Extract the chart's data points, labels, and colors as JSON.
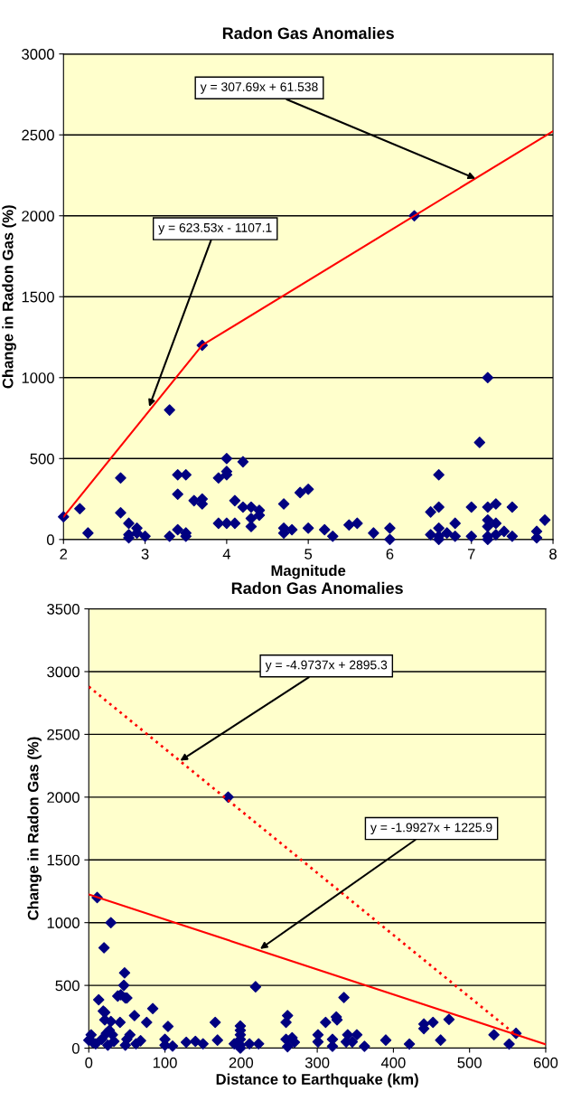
{
  "chart_data": [
    {
      "type": "scatter",
      "title": "Radon Gas Anomalies",
      "xlabel": "Magnitude",
      "ylabel": "Change in Radon Gas (%)",
      "xlim": [
        2,
        8
      ],
      "xticks": [
        2,
        3,
        4,
        5,
        6,
        7,
        8
      ],
      "ylim": [
        0,
        3000
      ],
      "yticks": [
        0,
        500,
        1000,
        1500,
        2000,
        2500,
        3000
      ],
      "grid": "y",
      "legend": false,
      "series": [
        {
          "color": "#000080",
          "marker": "diamond",
          "x": [
            2,
            2.2,
            2.3,
            2.7,
            2.7,
            2.8,
            2.8,
            2.8,
            2.9,
            2.9,
            3,
            3.3,
            3.3,
            3.4,
            3.4,
            3.4,
            3.5,
            3.5,
            3.5,
            3.6,
            3.7,
            3.7,
            3.7,
            3.9,
            3.9,
            4,
            4,
            4,
            4,
            4.1,
            4.1,
            4.2,
            4.2,
            4.3,
            4.3,
            4.3,
            4.4,
            4.4,
            4.7,
            4.7,
            4.7,
            4.8,
            4.9,
            5,
            5,
            5.2,
            5.3,
            5.5,
            5.6,
            5.8,
            6,
            6,
            6.3,
            6.5,
            6.5,
            6.6,
            6.6,
            6.6,
            6.6,
            6.6,
            6.7,
            6.8,
            6.8,
            7,
            7,
            7.1,
            7.2,
            7.2,
            7.2,
            7.2,
            7.2,
            7.2,
            7.3,
            7.3,
            7.3,
            7.4,
            7.5,
            7.5,
            7.8,
            7.8,
            7.9
          ],
          "values": [
            140,
            190,
            40,
            380,
            165,
            100,
            30,
            10,
            70,
            40,
            20,
            800,
            20,
            400,
            280,
            60,
            400,
            40,
            20,
            240,
            250,
            220,
            1200,
            380,
            100,
            500,
            420,
            400,
            100,
            240,
            100,
            480,
            200,
            200,
            130,
            80,
            180,
            150,
            220,
            70,
            40,
            60,
            290,
            310,
            70,
            60,
            20,
            90,
            100,
            40,
            70,
            0,
            2000,
            170,
            30,
            400,
            200,
            70,
            20,
            0,
            40,
            100,
            20,
            200,
            20,
            600,
            1000,
            200,
            120,
            80,
            20,
            0,
            220,
            100,
            30,
            50,
            200,
            20,
            50,
            10,
            120
          ]
        },
        {
          "type": "line",
          "color": "#ff0000",
          "line_style": "solid",
          "marker": "none",
          "x": [
            2,
            3.7,
            8
          ],
          "values": [
            140,
            1200,
            2523
          ]
        }
      ],
      "annotations": [
        {
          "text": "y = 307.69x + 61.538",
          "x": 7.05,
          "y": 2230
        },
        {
          "text": "y = 623.53x - 1107.1",
          "x": 3.05,
          "y": 820
        }
      ]
    },
    {
      "type": "scatter",
      "title": "Radon Gas Anomalies",
      "xlabel": "Distance to Earthquake (km)",
      "ylabel": "Change in Radon Gas (%)",
      "xlim": [
        0,
        600
      ],
      "xticks": [
        0,
        100,
        200,
        300,
        400,
        500,
        600
      ],
      "ylim": [
        0,
        3500
      ],
      "yticks": [
        0,
        500,
        1000,
        1500,
        2000,
        2500,
        3000,
        3500
      ],
      "grid": "y",
      "legend": false,
      "series": [
        {
          "color": "#000080",
          "marker": "diamond",
          "x": [
            183,
            11,
            29,
            20,
            47,
            46,
            42,
            38,
            48,
            50,
            13,
            19,
            21,
            21,
            29,
            41,
            60,
            76,
            84,
            104,
            166,
            169,
            199,
            199,
            199,
            199,
            199,
            199,
            219,
            261,
            259,
            259,
            261,
            267,
            0,
            3,
            5,
            9,
            17,
            23,
            27,
            31,
            33,
            25,
            50,
            54,
            48,
            68,
            62,
            100,
            100,
            110,
            128,
            140,
            150,
            191,
            211,
            223,
            270,
            335,
            311,
            325,
            326,
            301,
            301,
            320,
            320,
            340,
            338,
            346,
            352,
            362,
            390,
            421,
            440,
            440,
            452,
            473,
            462,
            532,
            552,
            561
          ],
          "values": [
            2000,
            1200,
            1000,
            800,
            600,
            500,
            425,
            415,
            400,
            400,
            385,
            295,
            285,
            225,
            213,
            205,
            260,
            205,
            315,
            173,
            205,
            64,
            177,
            142,
            106,
            71,
            24,
            0,
            489,
            260,
            205,
            71,
            12,
            83,
            64,
            106,
            47,
            35,
            71,
            118,
            142,
            106,
            54,
            24,
            71,
            106,
            24,
            59,
            35,
            71,
            24,
            17,
            47,
            54,
            35,
            35,
            35,
            35,
            47,
            404,
            206,
            248,
            225,
            106,
            50,
            71,
            15,
            106,
            50,
            50,
            106,
            15,
            64,
            33,
            192,
            156,
            206,
            229,
            64,
            106,
            33,
            118
          ]
        },
        {
          "type": "line",
          "color": "#ff0000",
          "line_style": "dotted",
          "marker": "none",
          "x": [
            0,
            560
          ],
          "values": [
            2880,
            110
          ]
        },
        {
          "type": "line",
          "color": "#ff0000",
          "line_style": "solid",
          "marker": "none",
          "x": [
            0,
            600
          ],
          "values": [
            1225,
            30
          ]
        }
      ],
      "annotations": [
        {
          "text": "y = -4.9737x + 2895.3",
          "x": 120,
          "y": 2290
        },
        {
          "text": "y = -1.9927x + 1225.9",
          "x": 225,
          "y": 790
        }
      ]
    }
  ]
}
